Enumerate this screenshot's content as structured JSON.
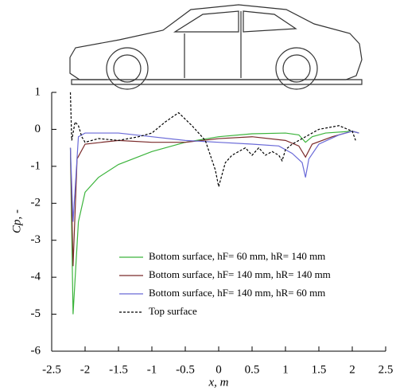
{
  "chart_data": {
    "type": "line",
    "xlabel": "x, m",
    "ylabel": "Cp, -",
    "xlim": [
      -2.5,
      2.5
    ],
    "ylim": [
      -6,
      1
    ],
    "xticks": [
      -2.5,
      -2,
      -1.5,
      -1,
      -0.5,
      0,
      0.5,
      1,
      1.5,
      2,
      2.5
    ],
    "yticks": [
      -6,
      -5,
      -4,
      -3,
      -2,
      -1,
      0,
      1
    ],
    "legend": "lower right",
    "series": [
      {
        "name": "Bottom surface, hF= 60 mm, hR= 140 mm",
        "color": "#3cb43c",
        "line_style": "solid",
        "x": [
          -2.22,
          -2.18,
          -2.1,
          -2.0,
          -1.8,
          -1.5,
          -1.0,
          -0.5,
          0,
          0.5,
          1.0,
          1.2,
          1.3,
          1.4,
          1.6,
          2.0,
          2.1
        ],
        "values": [
          -0.5,
          -5.0,
          -2.5,
          -1.7,
          -1.3,
          -0.95,
          -0.6,
          -0.35,
          -0.2,
          -0.12,
          -0.1,
          -0.15,
          -0.35,
          -0.2,
          -0.1,
          -0.05,
          -0.1
        ]
      },
      {
        "name": "Bottom surface, hF= 140 mm, hR= 140 mm",
        "color": "#7a2a2a",
        "line_style": "solid",
        "x": [
          -2.22,
          -2.18,
          -2.12,
          -2.0,
          -1.5,
          -1.0,
          -0.5,
          0,
          0.5,
          1.0,
          1.2,
          1.3,
          1.4,
          1.7,
          2.0,
          2.1
        ],
        "values": [
          -0.5,
          -3.7,
          -0.8,
          -0.4,
          -0.3,
          -0.35,
          -0.35,
          -0.25,
          -0.2,
          -0.3,
          -0.45,
          -0.75,
          -0.4,
          -0.2,
          -0.05,
          -0.1
        ]
      },
      {
        "name": "Bottom surface, hF= 140 mm, hR= 60 mm",
        "color": "#6a6ad8",
        "line_style": "solid",
        "x": [
          -2.22,
          -2.18,
          -2.1,
          -2.0,
          -1.5,
          -1.0,
          -0.5,
          0,
          0.5,
          0.9,
          1.1,
          1.25,
          1.3,
          1.35,
          1.5,
          1.8,
          2.0,
          2.1
        ],
        "values": [
          -0.5,
          -2.5,
          -0.2,
          -0.1,
          -0.1,
          -0.2,
          -0.3,
          -0.35,
          -0.4,
          -0.45,
          -0.65,
          -0.9,
          -1.3,
          -0.8,
          -0.4,
          -0.15,
          -0.05,
          -0.1
        ]
      },
      {
        "name": "Top surface",
        "color": "#000000",
        "line_style": "dashed",
        "x": [
          -2.22,
          -2.2,
          -2.15,
          -2.1,
          -2.05,
          -2.0,
          -1.8,
          -1.5,
          -1.2,
          -1.0,
          -0.8,
          -0.6,
          -0.4,
          -0.2,
          -0.05,
          0,
          0.1,
          0.2,
          0.4,
          0.5,
          0.6,
          0.7,
          0.8,
          0.9,
          0.95,
          1.0,
          1.1,
          1.3,
          1.5,
          1.8,
          2.0,
          2.05
        ],
        "values": [
          1.0,
          -0.3,
          0.2,
          0.1,
          -0.2,
          -0.35,
          -0.25,
          -0.3,
          -0.2,
          -0.1,
          0.2,
          0.45,
          0.1,
          -0.3,
          -1.1,
          -1.55,
          -0.9,
          -0.7,
          -0.5,
          -0.7,
          -0.5,
          -0.7,
          -0.6,
          -0.7,
          -0.85,
          -0.55,
          -0.4,
          -0.2,
          0.0,
          0.1,
          -0.05,
          -0.3
        ]
      }
    ]
  }
}
